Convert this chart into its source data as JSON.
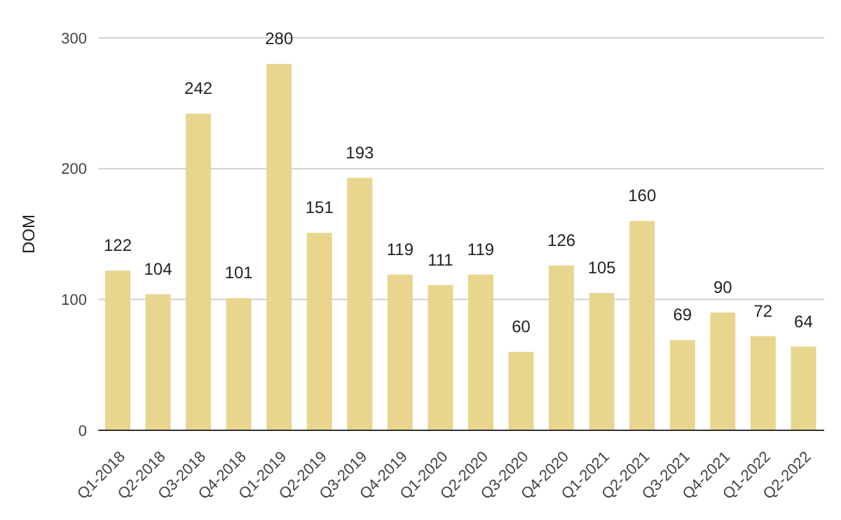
{
  "chart_data": {
    "type": "bar",
    "ylabel": "DOM",
    "categories": [
      "Q1-2018",
      "Q2-2018",
      "Q3-2018",
      "Q4-2018",
      "Q1-2019",
      "Q2-2019",
      "Q3-2019",
      "Q4-2019",
      "Q1-2020",
      "Q2-2020",
      "Q3-2020",
      "Q4-2020",
      "Q1-2021",
      "Q2-2021",
      "Q3-2021",
      "Q4-2021",
      "Q1-2022",
      "Q2-2022"
    ],
    "values": [
      122,
      104,
      242,
      101,
      280,
      151,
      193,
      119,
      111,
      119,
      60,
      126,
      105,
      160,
      69,
      90,
      72,
      64
    ],
    "color": "#e8d68f",
    "ylim": [
      0,
      300
    ],
    "yticks": [
      0,
      100,
      200,
      300
    ],
    "grid": "y",
    "data_labels": true
  }
}
